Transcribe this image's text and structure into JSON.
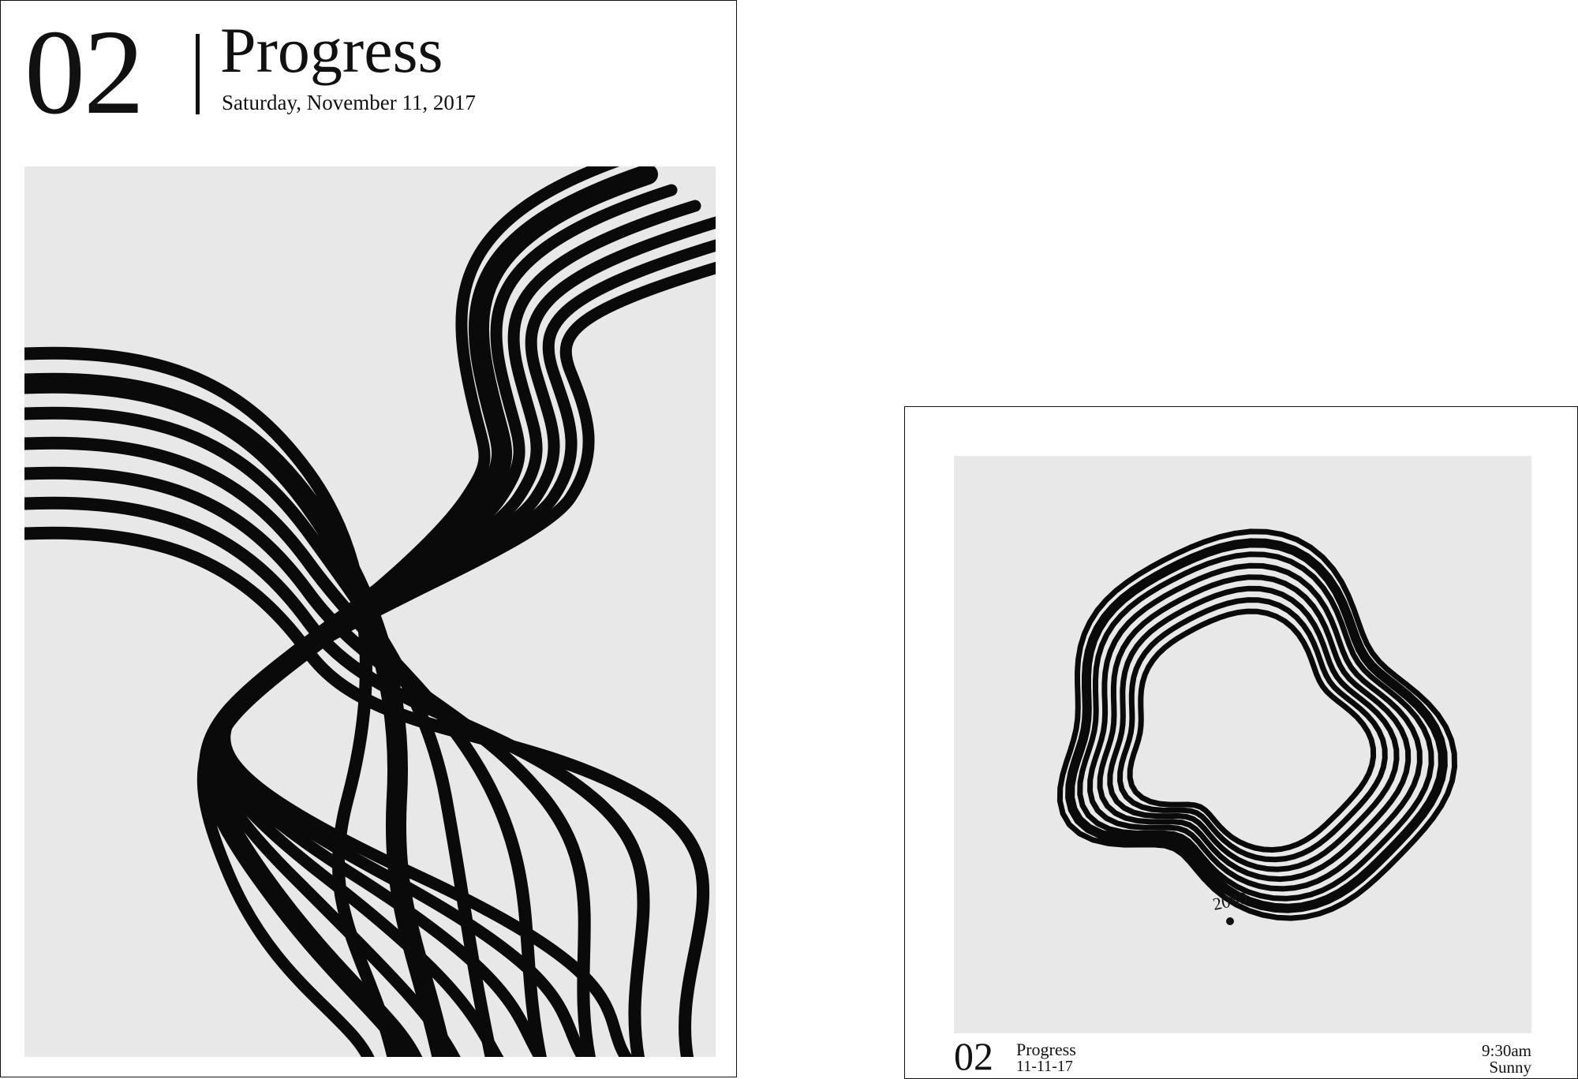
{
  "poster_large": {
    "number": "02",
    "title": "Progress",
    "date": "Saturday, November 11, 2017"
  },
  "poster_small": {
    "number": "02",
    "title": "Progress",
    "date": "11-11-17",
    "time": "9:30am",
    "weather": "Sunny",
    "marker_label": "2080"
  },
  "colors": {
    "accent": "#d4f71a",
    "line": "#0a0a0a",
    "panel": "#e8e8e8",
    "background": "#ffffff"
  }
}
